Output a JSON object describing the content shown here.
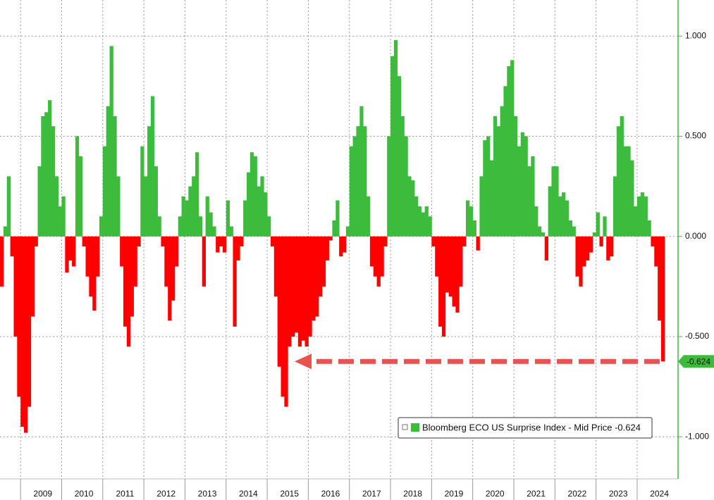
{
  "chart_data": {
    "type": "bar",
    "categories": [
      null,
      null,
      null,
      null,
      null,
      null,
      null,
      null,
      null,
      null,
      null,
      null,
      "2009",
      null,
      null,
      null,
      null,
      null,
      null,
      null,
      null,
      null,
      null,
      null,
      "2010",
      null,
      null,
      null,
      null,
      null,
      null,
      null,
      null,
      null,
      null,
      null,
      "2011",
      null,
      null,
      null,
      null,
      null,
      null,
      null,
      null,
      null,
      null,
      null,
      "2012",
      null,
      null,
      null,
      null,
      null,
      null,
      null,
      null,
      null,
      null,
      null,
      "2013",
      null,
      null,
      null,
      null,
      null,
      null,
      null,
      null,
      null,
      null,
      null,
      "2014",
      null,
      null,
      null,
      null,
      null,
      null,
      null,
      null,
      null,
      null,
      null,
      "2015",
      null,
      null,
      null,
      null,
      null,
      null,
      null,
      null,
      null,
      null,
      null,
      "2016",
      null,
      null,
      null,
      null,
      null,
      null,
      null,
      null,
      null,
      null,
      null,
      "2017",
      null,
      null,
      null,
      null,
      null,
      null,
      null,
      null,
      null,
      null,
      null,
      "2018",
      null,
      null,
      null,
      null,
      null,
      null,
      null,
      null,
      null,
      null,
      null,
      "2019",
      null,
      null,
      null,
      null,
      null,
      null,
      null,
      null,
      null,
      null,
      null,
      "2020",
      null,
      null,
      null,
      null,
      null,
      null,
      null,
      null,
      null,
      null,
      null,
      "2021",
      null,
      null,
      null,
      null,
      null,
      null,
      null,
      null,
      null,
      null,
      null,
      "2022",
      null,
      null,
      null,
      null,
      null,
      null,
      null,
      null,
      null,
      null,
      null,
      "2023",
      null,
      null,
      null,
      null,
      null,
      null,
      null,
      null,
      null,
      null,
      null,
      "2024",
      null
    ],
    "series": [
      {
        "name": "Bloomberg ECO US Surprise Index - Mid Price -0.624",
        "color": "#3dbb3d",
        "negative_color": "#ff0000",
        "values": [
          -0.25,
          0.05,
          0.3,
          -0.1,
          -0.5,
          -0.8,
          -0.95,
          -0.98,
          -0.85,
          -0.4,
          -0.05,
          0.35,
          0.6,
          0.62,
          0.68,
          0.55,
          0.3,
          0.15,
          0.2,
          -0.18,
          -0.12,
          -0.15,
          0.5,
          0.4,
          -0.05,
          -0.2,
          -0.3,
          -0.37,
          -0.2,
          0.1,
          0.45,
          0.65,
          0.95,
          0.6,
          0.3,
          -0.15,
          -0.45,
          -0.55,
          -0.4,
          -0.25,
          -0.05,
          0.45,
          0.3,
          0.55,
          0.7,
          0.35,
          0.1,
          -0.05,
          -0.25,
          -0.42,
          -0.32,
          -0.15,
          0.1,
          0.2,
          0.18,
          0.25,
          0.3,
          0.42,
          0.1,
          -0.25,
          0.2,
          0.12,
          0.05,
          -0.08,
          -0.05,
          -0.08,
          0.18,
          0.05,
          -0.45,
          -0.12,
          -0.05,
          0.18,
          0.32,
          0.42,
          0.4,
          0.25,
          0.3,
          0.22,
          0.1,
          -0.05,
          -0.3,
          -0.65,
          -0.8,
          -0.85,
          -0.55,
          -0.5,
          -0.48,
          -0.55,
          -0.52,
          -0.55,
          -0.5,
          -0.42,
          -0.4,
          -0.3,
          -0.25,
          -0.12,
          -0.02,
          0.08,
          0.18,
          -0.1,
          -0.08,
          0.05,
          0.45,
          0.5,
          0.55,
          0.65,
          0.55,
          0.2,
          -0.15,
          -0.2,
          -0.25,
          -0.2,
          -0.05,
          0.5,
          0.9,
          0.98,
          0.8,
          0.6,
          0.5,
          0.3,
          0.28,
          0.2,
          0.15,
          0.12,
          0.15,
          0.1,
          -0.05,
          -0.2,
          -0.45,
          -0.5,
          -0.28,
          -0.3,
          -0.35,
          -0.38,
          -0.25,
          -0.05,
          0.18,
          0.15,
          0.08,
          -0.07,
          0.3,
          0.48,
          0.5,
          0.38,
          0.6,
          0.55,
          0.65,
          0.75,
          0.85,
          0.88,
          0.6,
          0.45,
          0.52,
          0.5,
          0.35,
          0.4,
          0.15,
          0.05,
          0.02,
          -0.12,
          0.25,
          0.35,
          0.35,
          0.2,
          0.22,
          0.18,
          0.08,
          0.05,
          -0.2,
          -0.25,
          -0.15,
          -0.12,
          -0.08,
          0.02,
          0.12,
          -0.05,
          0.1,
          -0.12,
          -0.1,
          0.3,
          0.55,
          0.6,
          0.45,
          0.45,
          0.38,
          0.15,
          0.2,
          0.22,
          0.2,
          0.08,
          -0.05,
          -0.15,
          -0.42,
          -0.624
        ]
      }
    ],
    "current_value_label": "-0.624",
    "ylim": [
      -1.21,
      1.18
    ],
    "yticks": [
      {
        "value": 1,
        "label": "1.000"
      },
      {
        "value": 0.5,
        "label": "0.500"
      },
      {
        "value": 0,
        "label": "0.000"
      },
      {
        "value": -0.5,
        "label": "-0.500"
      },
      {
        "value": -1,
        "label": "-1.000"
      }
    ],
    "grid": true
  }
}
